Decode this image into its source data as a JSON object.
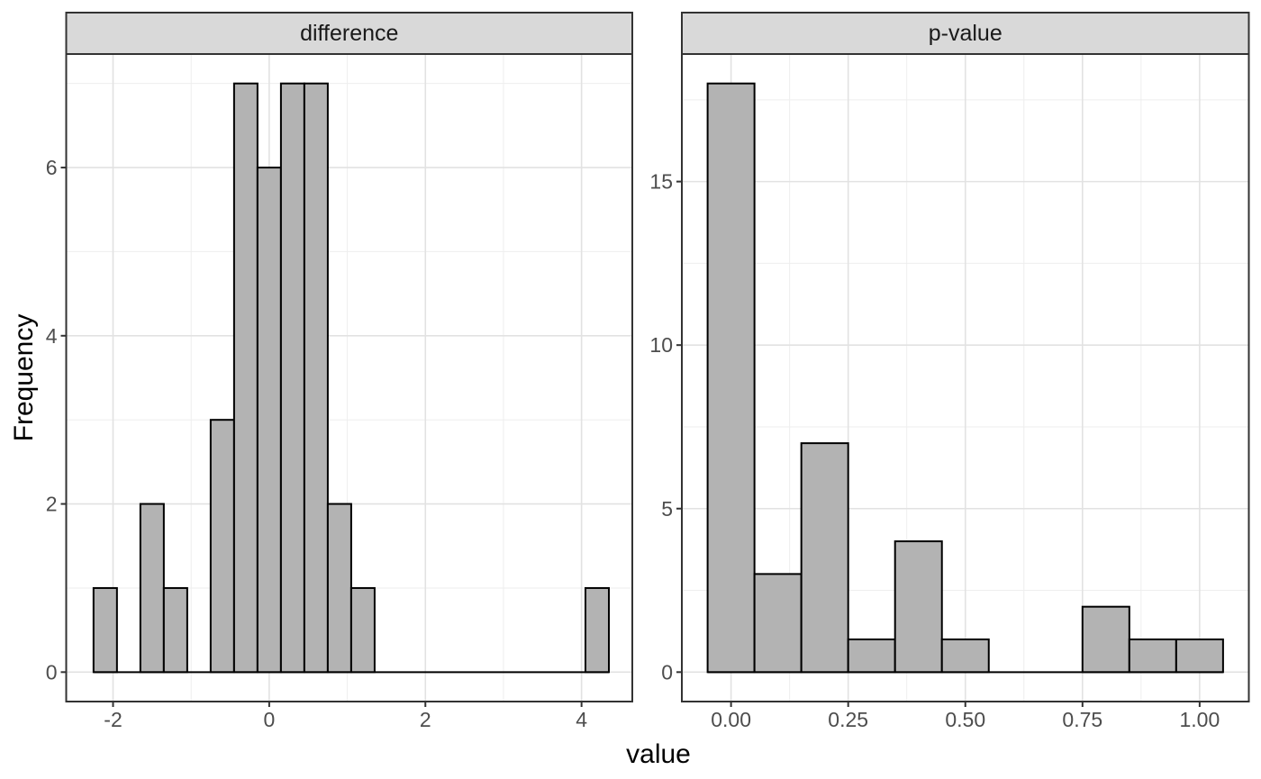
{
  "figure": {
    "x_title": "value",
    "y_title": "Frequency"
  },
  "colors": {
    "background": "#ffffff",
    "panel_bg": "#ffffff",
    "panel_border": "#333333",
    "grid_major": "#e2e2e2",
    "grid_minor": "#eeeeee",
    "bar_fill": "#b3b3b3",
    "bar_stroke": "#000000",
    "strip_fill": "#d9d9d9",
    "strip_border": "#333333",
    "strip_text": "#1a1a1a",
    "tick_mark": "#333333",
    "tick_label": "#4d4d4d",
    "axis_title": "#000000"
  },
  "chart_data": [
    {
      "type": "bar",
      "geom": "histogram",
      "facet_label": "difference",
      "bin_width": 0.3,
      "x_domain": [
        -2.6,
        4.65
      ],
      "y_domain": [
        -0.35,
        7.35
      ],
      "x_ticks": [
        {
          "v": -2,
          "label": "-2"
        },
        {
          "v": 0,
          "label": "0"
        },
        {
          "v": 2,
          "label": "2"
        },
        {
          "v": 4,
          "label": "4"
        }
      ],
      "y_ticks": [
        {
          "v": 0,
          "label": "0"
        },
        {
          "v": 2,
          "label": "2"
        },
        {
          "v": 4,
          "label": "4"
        },
        {
          "v": 6,
          "label": "6"
        }
      ],
      "x_minor": [
        -1,
        1,
        3
      ],
      "y_minor": [
        1,
        3,
        5,
        7
      ],
      "bins": [
        {
          "x0": -2.25,
          "x1": -1.95,
          "count": 1
        },
        {
          "x0": -1.95,
          "x1": -1.65,
          "count": 0
        },
        {
          "x0": -1.65,
          "x1": -1.35,
          "count": 2
        },
        {
          "x0": -1.35,
          "x1": -1.05,
          "count": 1
        },
        {
          "x0": -1.05,
          "x1": -0.75,
          "count": 0
        },
        {
          "x0": -0.75,
          "x1": -0.45,
          "count": 3
        },
        {
          "x0": -0.45,
          "x1": -0.15,
          "count": 7
        },
        {
          "x0": -0.15,
          "x1": 0.15,
          "count": 6
        },
        {
          "x0": 0.15,
          "x1": 0.45,
          "count": 7
        },
        {
          "x0": 0.45,
          "x1": 0.75,
          "count": 7
        },
        {
          "x0": 0.75,
          "x1": 1.05,
          "count": 2
        },
        {
          "x0": 1.05,
          "x1": 1.35,
          "count": 1
        },
        {
          "x0": 1.35,
          "x1": 1.65,
          "count": 0
        },
        {
          "x0": 1.65,
          "x1": 1.95,
          "count": 0
        },
        {
          "x0": 1.95,
          "x1": 2.25,
          "count": 0
        },
        {
          "x0": 2.25,
          "x1": 2.55,
          "count": 0
        },
        {
          "x0": 2.55,
          "x1": 2.85,
          "count": 0
        },
        {
          "x0": 2.85,
          "x1": 3.15,
          "count": 0
        },
        {
          "x0": 3.15,
          "x1": 3.45,
          "count": 0
        },
        {
          "x0": 3.45,
          "x1": 3.75,
          "count": 0
        },
        {
          "x0": 3.75,
          "x1": 4.05,
          "count": 0
        },
        {
          "x0": 4.05,
          "x1": 4.35,
          "count": 1
        }
      ]
    },
    {
      "type": "bar",
      "geom": "histogram",
      "facet_label": "p-value",
      "bin_width": 0.1,
      "x_domain": [
        -0.105,
        1.105
      ],
      "y_domain": [
        -0.9,
        18.9
      ],
      "x_ticks": [
        {
          "v": 0,
          "label": "0.00"
        },
        {
          "v": 0.25,
          "label": "0.25"
        },
        {
          "v": 0.5,
          "label": "0.50"
        },
        {
          "v": 0.75,
          "label": "0.75"
        },
        {
          "v": 1,
          "label": "1.00"
        }
      ],
      "y_ticks": [
        {
          "v": 0,
          "label": "0"
        },
        {
          "v": 5,
          "label": "5"
        },
        {
          "v": 10,
          "label": "10"
        },
        {
          "v": 15,
          "label": "15"
        }
      ],
      "x_minor": [
        0.125,
        0.375,
        0.625,
        0.875
      ],
      "y_minor": [
        2.5,
        7.5,
        12.5,
        17.5
      ],
      "bins": [
        {
          "x0": -0.05,
          "x1": 0.05,
          "count": 18
        },
        {
          "x0": 0.05,
          "x1": 0.15,
          "count": 3
        },
        {
          "x0": 0.15,
          "x1": 0.25,
          "count": 7
        },
        {
          "x0": 0.25,
          "x1": 0.35,
          "count": 1
        },
        {
          "x0": 0.35,
          "x1": 0.45,
          "count": 4
        },
        {
          "x0": 0.45,
          "x1": 0.55,
          "count": 1
        },
        {
          "x0": 0.55,
          "x1": 0.65,
          "count": 0
        },
        {
          "x0": 0.65,
          "x1": 0.75,
          "count": 0
        },
        {
          "x0": 0.75,
          "x1": 0.85,
          "count": 2
        },
        {
          "x0": 0.85,
          "x1": 0.95,
          "count": 1
        },
        {
          "x0": 0.95,
          "x1": 1.05,
          "count": 1
        }
      ]
    }
  ]
}
